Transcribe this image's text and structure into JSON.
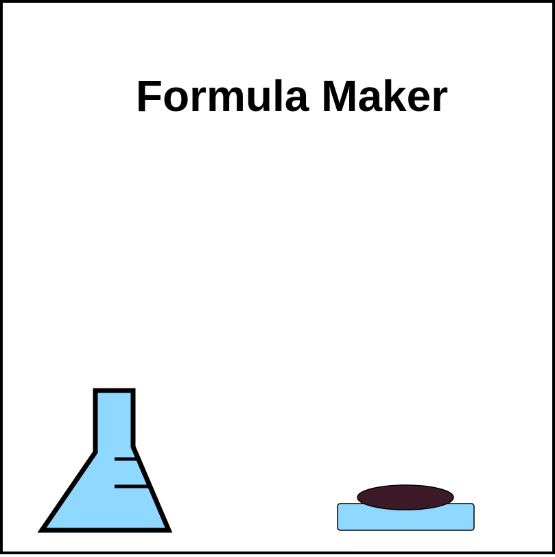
{
  "game": {
    "title": "Formula Maker"
  },
  "colors": {
    "background": "#ffffff",
    "border": "#000000",
    "flask_liquid": "#8fd8ff",
    "flask_outline": "#000000",
    "button_base": "#8fd8ff",
    "button_top": "#3d1a27"
  },
  "icons": {
    "flask": "erlenmeyer-flask-icon",
    "button": "push-button-icon"
  }
}
